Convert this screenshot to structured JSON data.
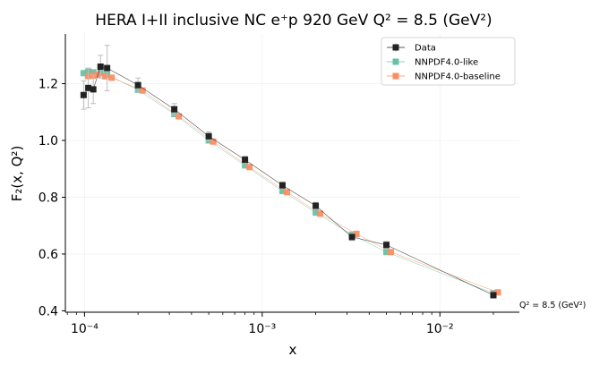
{
  "chart_data": {
    "type": "line",
    "title": "HERA I+II inclusive NC e⁺p 920 GeV Q² = 8.5 (GeV²)",
    "xlabel": "x",
    "ylabel": "F₂(x, Q²)",
    "xscale": "log",
    "xlim": [
      7.8e-05,
      0.028
    ],
    "ylim": [
      0.395,
      1.375
    ],
    "yticks": [
      0.4,
      0.6,
      0.8,
      1.0,
      1.2
    ],
    "ytick_labels": [
      "0.4",
      "0.6",
      "0.8",
      "1.0",
      "1.2"
    ],
    "xticks": [
      0.0001,
      0.001,
      0.01
    ],
    "xtick_labels": [
      "10⁻⁴",
      "10⁻³",
      "10⁻²"
    ],
    "grid": true,
    "legend_position": "top-right",
    "annotation": "Q² = 8.5 (GeV²)",
    "series": [
      {
        "name": "Data",
        "color": "#222222",
        "marker": "square",
        "has_error_bars": true,
        "x": [
          9.88e-05,
          0.000105,
          0.000112,
          0.000123,
          0.000134,
          0.0002,
          0.00032,
          0.0005,
          0.0008,
          0.0013,
          0.002,
          0.0032,
          0.005,
          0.02
        ],
        "y": [
          1.16,
          1.185,
          1.18,
          1.26,
          1.255,
          1.195,
          1.11,
          1.015,
          0.932,
          0.842,
          0.77,
          0.66,
          0.632,
          0.455
        ],
        "err": [
          0.05,
          0.07,
          0.05,
          0.04,
          0.08,
          0.025,
          0.02,
          0.015,
          0.013,
          0.012,
          0.012,
          0.012,
          0.012,
          0.01
        ]
      },
      {
        "name": "NNPDF4.0-like",
        "color": "#66c2a5",
        "marker": "square",
        "has_error_bars": false,
        "x": [
          9.88e-05,
          0.000105,
          0.000112,
          0.000123,
          0.000134,
          0.0002,
          0.00032,
          0.0005,
          0.0008,
          0.0013,
          0.002,
          0.0032,
          0.005,
          0.02
        ],
        "y": [
          1.237,
          1.242,
          1.24,
          1.238,
          1.232,
          1.178,
          1.093,
          1.0,
          0.912,
          0.822,
          0.746,
          0.668,
          0.607,
          0.462
        ]
      },
      {
        "name": "NNPDF4.0-baseline",
        "color": "#fc8d62",
        "marker": "square",
        "has_error_bars": false,
        "x": [
          9.88e-05,
          0.000105,
          0.000112,
          0.000123,
          0.000134,
          0.0002,
          0.00032,
          0.0005,
          0.0008,
          0.0013,
          0.002,
          0.0032,
          0.005,
          0.02
        ],
        "y": [
          1.227,
          1.228,
          1.232,
          1.226,
          1.221,
          1.176,
          1.085,
          0.996,
          0.906,
          0.818,
          0.742,
          0.671,
          0.607,
          0.465
        ]
      }
    ]
  }
}
